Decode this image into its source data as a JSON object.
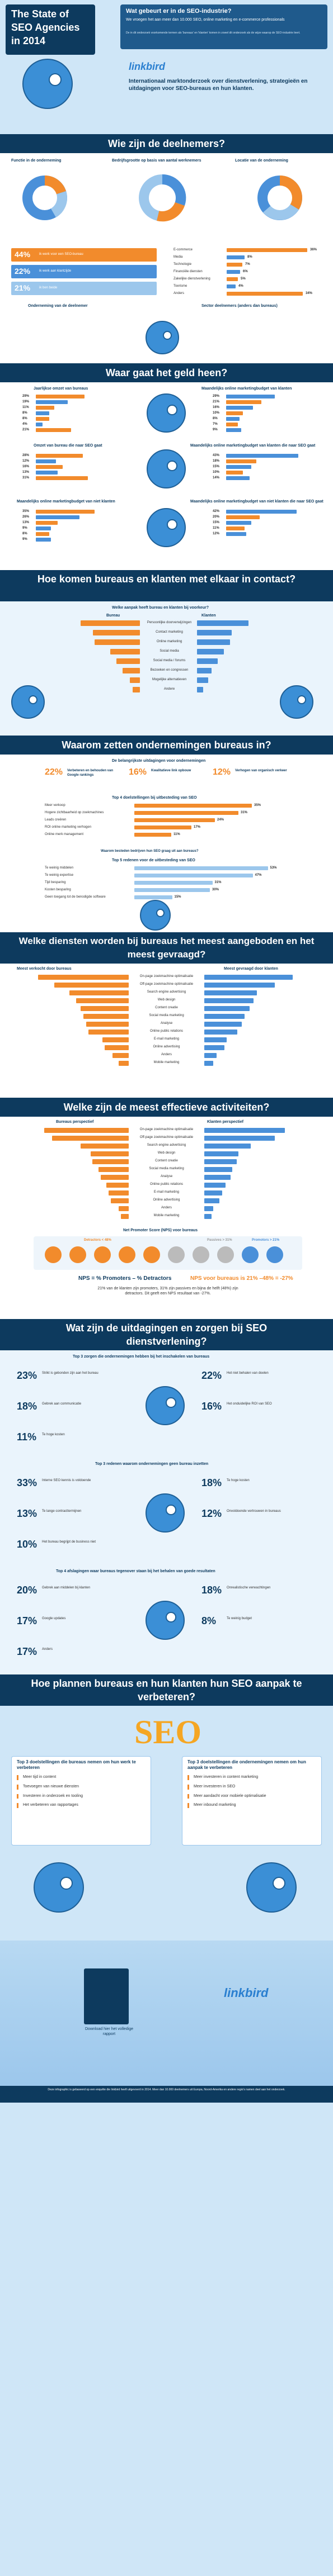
{
  "colors": {
    "navy": "#0d3a5e",
    "blue": "#4a90d9",
    "orange": "#f28b2c",
    "light_blue": "#9cc7ec",
    "sky": "#cfe6f7"
  },
  "header": {
    "title_line1": "The State of",
    "title_line2": "SEO Agencies",
    "title_line3": "in 2014",
    "question": "Wat gebeurt er in de SEO-industrie?",
    "intro": "We vroegen het aan meer dan 10.000 SEO, online marketing en e-commerce professionals",
    "note": "De in dit onderzoek voorkomende termen als 'bureaus' en 'klanten' komen in zowel dit onderzoek als de wijze waarop de SEO-industrie leert.",
    "brand": "linkbird",
    "subtitle": "Internationaal marktonderzoek over dienstverlening, strategieën en uitdagingen voor SEO-bureaus en hun klanten."
  },
  "sections": {
    "s1": "Wie zijn de deelnemers?",
    "s2": "Waar gaat het geld heen?",
    "s3": "Hoe komen bureaus en klanten met elkaar in contact?",
    "s4": "Waarom zetten ondernemingen bureaus in?",
    "s5": "Welke diensten worden bij bureaus het meest aangeboden en het meest gevraagd?",
    "s6": "Welke zijn de meest effectieve activiteiten?",
    "s7": "Wat zijn de uitdagingen en zorgen bij SEO dienstverlening?",
    "s8": "Hoe plannen bureaus en hun klanten hun SEO aanpak te verbeteren?"
  },
  "participants": {
    "chart1": "Functie in de onderneming",
    "chart2": "Bedrijfsgrootte op basis van aantal werknemers",
    "chart3": "Locatie van de onderneming",
    "roles": [
      {
        "pct": "44%",
        "text": "ik werk voor een SEO-bureau"
      },
      {
        "pct": "22%",
        "text": "ik werk aan klantzijde"
      },
      {
        "pct": "21%",
        "text": "ik ben beide"
      }
    ],
    "role_caption": "Onderneming van de deelnemer",
    "sector_caption": "Sector deelnemers (anders dan bureaus)",
    "sectors": [
      "E-commerce",
      "Media",
      "Technologie",
      "Financiële diensten",
      "Zakelijke dienstverlening",
      "Toerisme",
      "Anders"
    ],
    "sector_values": [
      36,
      8,
      7,
      6,
      5,
      4,
      34
    ]
  },
  "money": {
    "c1": "Jaarlijkse omzet van bureaus",
    "c2": "Maandelijks online marketingbudget van klanten",
    "c3": "Omzet van bureau die naar SEO gaat",
    "c4": "Maandelijks online marketingbudget van klanten die naar SEO gaat",
    "c5": "Maandelijks online marketingbudget van niet klanten",
    "c6": "Maandelijks online marketingbudget van niet klanten die naar SEO gaat",
    "c1_values": [
      29,
      19,
      11,
      8,
      8,
      4,
      21
    ],
    "c2_values": [
      29,
      21,
      16,
      10,
      8,
      7,
      9
    ],
    "c3_values": [
      28,
      12,
      16,
      13,
      31
    ],
    "c4_values": [
      43,
      18,
      15,
      10,
      14
    ],
    "c5_values": [
      35,
      26,
      13,
      9,
      8,
      9
    ],
    "c6_values": [
      42,
      20,
      15,
      11,
      12
    ]
  },
  "contact": {
    "question": "Welke aanpak heeft bureau en klanten bij voorkeur?",
    "col1": "Bureau",
    "col2": "Klanten",
    "rows": [
      "Persoonlijke doorverwijzingen",
      "Contact marketing",
      "Online marketing",
      "Social media",
      "Social media / forums",
      "Bezoeken en congressen",
      "Mogelijke alternatieven",
      "Andere"
    ],
    "bureau": [
      48,
      38,
      37,
      24,
      19,
      14,
      8,
      6
    ],
    "klant": [
      42,
      28,
      27,
      22,
      17,
      12,
      9,
      5
    ]
  },
  "why": {
    "q1": "De belangrijkste uitdagingen voor ondernemingen",
    "tops": [
      {
        "pct": "22%",
        "text": "Verbeteren en behouden van Google rankings"
      },
      {
        "pct": "16%",
        "text": "Kwalitatieve link opbouw"
      },
      {
        "pct": "12%",
        "text": "Verhogen van organisch verkeer"
      }
    ],
    "q2": "Top 4 doelstellingen bij uitbesteding van SEO",
    "q2_items": [
      "Meer verkoop",
      "Hogere zichtbaarheid op zoekmachines",
      "Leads creëren",
      "ROI online marketing verhogen",
      "Online merk management"
    ],
    "q2_values": [
      35,
      31,
      24,
      17,
      11
    ],
    "q3": "Waarom besteden bedrijven hun SEO graag uit aan bureaus?",
    "q4": "Top 5 redenen voor de uitbesteding van SEO",
    "q4_items": [
      "Te weinig middelen",
      "Te weinig expertise",
      "Tijd besparing",
      "Kosten besparing",
      "Geen toegang tot de benodigde software"
    ],
    "q4_values": [
      53,
      47,
      31,
      30,
      15
    ]
  },
  "services": {
    "left": "Meest verkocht door bureaus",
    "right": "Meest gevraagd door klanten",
    "rows": [
      "On-page zoekmachine optimalisatie",
      "Off-page zoekmachine optimalisatie",
      "Search engine advertising",
      "Web design",
      "Content creatie",
      "Social media marketing",
      "Analyse",
      "Online public relations",
      "E-mail marketing",
      "Online advertising",
      "Anders",
      "Mobile marketing"
    ],
    "left_values": [
      90,
      74,
      59,
      52,
      48,
      45,
      42,
      40,
      26,
      24,
      16,
      10
    ],
    "right_values": [
      88,
      70,
      52,
      49,
      45,
      40,
      37,
      33,
      22,
      20,
      12,
      9
    ]
  },
  "effective": {
    "left": "Bureaus perspectief",
    "right": "Klanten perspectief",
    "rows": [
      "On-page zoekmachine optimalisatie",
      "Off-page zoekmachine optimalisatie",
      "Search engine advertising",
      "Web design",
      "Content creatie",
      "Social media marketing",
      "Analyse",
      "Online public relations",
      "E-mail marketing",
      "Online advertising",
      "Anders",
      "Mobile marketing"
    ],
    "left_values": [
      84,
      76,
      48,
      38,
      36,
      30,
      28,
      22,
      20,
      18,
      10,
      8
    ],
    "right_values": [
      80,
      70,
      46,
      34,
      32,
      28,
      26,
      21,
      18,
      15,
      9,
      7
    ],
    "nps_title": "Net Promoter Score (NPS) voor bureaus",
    "detractors": "Detractors < 48%",
    "passives": "Passives > 31%",
    "promoters": "Promotors > 21%",
    "nps_formula": "NPS  =  % Promoters  –  % Detractors",
    "nps_result": "NPS voor bureaus is 21%  –48%  = -27%",
    "nps_note": "21% van de klanten zijn promoters, 31% zijn passives en bijna de helft (48%) zijn detractors. Dit geeft een NPS resultaat van -27%."
  },
  "challenges": {
    "q1": "Top 3 zorgen die ondernemingen hebben bij het inschakelen van bureaus",
    "q1_items": [
      {
        "pct": "23%",
        "text": "Strikt is gebonden zijn aan het bureau"
      },
      {
        "pct": "22%",
        "text": "Het niet behalen van doelen"
      },
      {
        "pct": "18%",
        "text": "Gebrek aan communicatie"
      },
      {
        "pct": "16%",
        "text": "Het onduidelijke ROI van SEO"
      },
      {
        "pct": "11%",
        "text": "Te hoge kosten"
      }
    ],
    "q2": "Top 3 redenen waarom ondernemingen geen bureau inzetten",
    "q2_items": [
      {
        "pct": "33%",
        "text": "Interne SEO kennis is voldoende"
      },
      {
        "pct": "18%",
        "text": "Te hoge kosten"
      },
      {
        "pct": "13%",
        "text": "Te lange contracttermijnen"
      },
      {
        "pct": "12%",
        "text": "Onvoldoende vertrouwen in bureaus"
      },
      {
        "pct": "10%",
        "text": "Het bureau begrijpt de business niet"
      }
    ],
    "q3": "Top 4 afslagingen waar bureaus tegenover staan bij het behalen van goede resultaten",
    "q3_items": [
      {
        "pct": "20%",
        "text": "Gebrek aan middelen bij klanten"
      },
      {
        "pct": "18%",
        "text": "Onrealistische verwachtingen"
      },
      {
        "pct": "17%",
        "text": "Google updates"
      },
      {
        "pct": "8%",
        "text": "Te weinig budget"
      },
      {
        "pct": "17%",
        "text": "Anders"
      }
    ]
  },
  "plans": {
    "left_title": "Top 3 doelstellingen die bureaus nemen om hun werk te verbeteren",
    "right_title": "Top 3 doelstellingen die ondernemingen nemen om hun aanpak te verbeteren",
    "left_items": [
      "Meer tijd in content",
      "Toevoegen van nieuwe diensten",
      "Investeren in onderzoek en tooling",
      "Het verbeteren van rapportages"
    ],
    "right_items": [
      "Meer investeren in content marketing",
      "Meer investeren in SEO",
      "Meer aandacht voor mobiele optimalisatie",
      "Meer inbound marketing"
    ],
    "download": "Download hier het volledige rapport",
    "brand": "linkbird",
    "footer": "Deze infographic is gebaseerd op een enquête die linkbird heeft uitgevoerd in 2014. Meer dan 10.000 deelnemers uit Europa, Noord-Amerika en andere regio's namen deel aan het onderzoek."
  }
}
